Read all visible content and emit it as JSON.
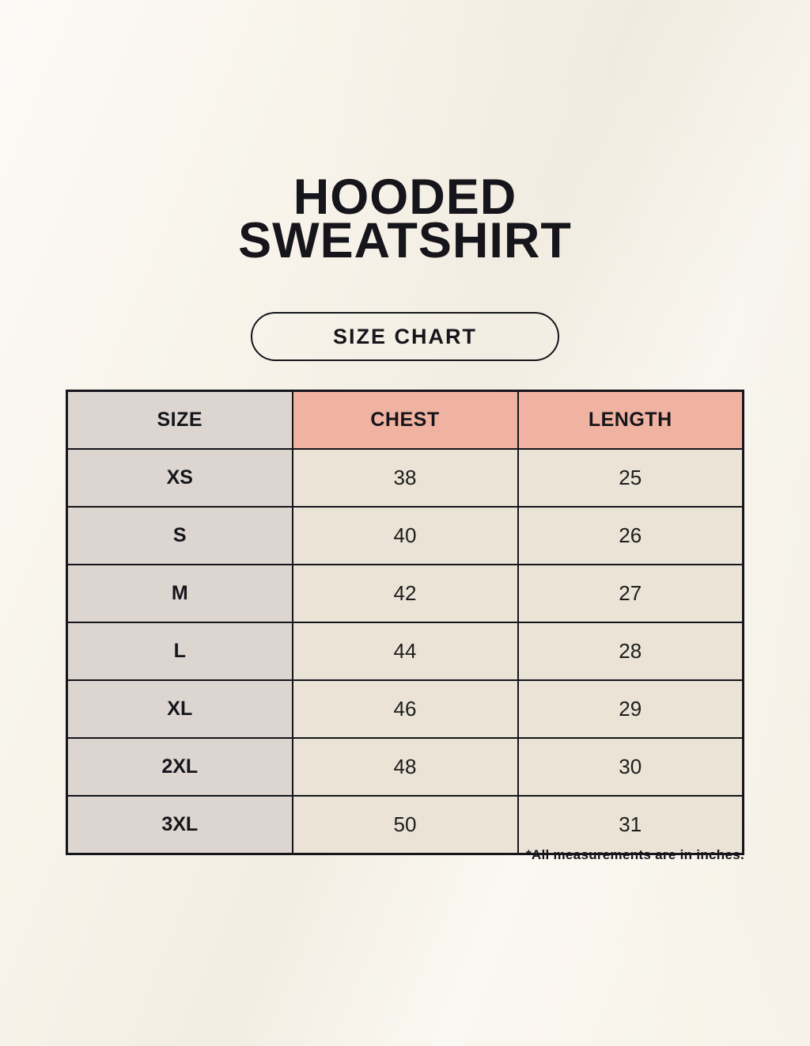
{
  "page": {
    "title_line1": "HOODED",
    "title_line2": "SWEATSHIRT",
    "badge_label": "SIZE CHART",
    "note": "*All measurements are in inches."
  },
  "table": {
    "headers": {
      "size": "SIZE",
      "chest": "CHEST",
      "length": "LENGTH"
    },
    "rows": [
      {
        "size": "XS",
        "chest": "38",
        "length": "25"
      },
      {
        "size": "S",
        "chest": "40",
        "length": "26"
      },
      {
        "size": "M",
        "chest": "42",
        "length": "27"
      },
      {
        "size": "L",
        "chest": "44",
        "length": "28"
      },
      {
        "size": "XL",
        "chest": "46",
        "length": "29"
      },
      {
        "size": "2XL",
        "chest": "48",
        "length": "30"
      },
      {
        "size": "3XL",
        "chest": "50",
        "length": "31"
      }
    ]
  },
  "colors": {
    "background": "#f8f4eb",
    "size_column_bg": "#dcd5d0",
    "header_accent_bg": "#f1b3a1",
    "value_cell_bg": "#eae3d6",
    "border": "#15151b",
    "text": "#141414"
  },
  "chart_data": {
    "type": "table",
    "title": "HOODED SWEATSHIRT",
    "subtitle": "SIZE CHART",
    "columns": [
      "SIZE",
      "CHEST",
      "LENGTH"
    ],
    "rows": [
      [
        "XS",
        38,
        25
      ],
      [
        "S",
        40,
        26
      ],
      [
        "M",
        42,
        27
      ],
      [
        "L",
        44,
        28
      ],
      [
        "XL",
        46,
        29
      ],
      [
        "2XL",
        48,
        30
      ],
      [
        "3XL",
        50,
        31
      ]
    ],
    "footnote": "*All measurements are in inches.",
    "units": "inches"
  }
}
